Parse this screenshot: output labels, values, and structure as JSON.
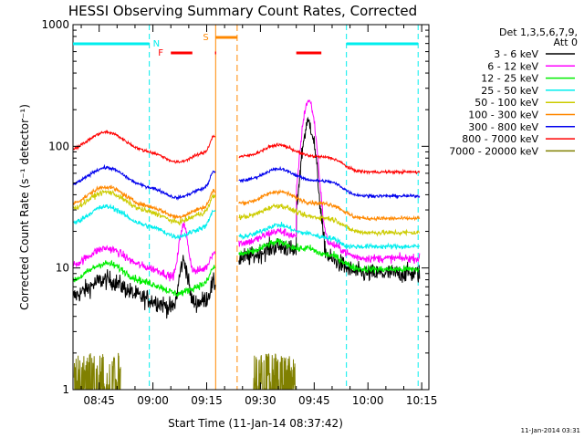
{
  "chart_data": {
    "type": "line",
    "title": "HESSI Observing Summary Count Rates, Corrected",
    "xlabel": "Start Time (11-Jan-14 08:37:42)",
    "ylabel": "Corrected Count Rate (s⁻¹ detector⁻¹)",
    "yscale": "log",
    "ylim": [
      1,
      1000
    ],
    "xlim": [
      "08:37:42",
      "10:17:00"
    ],
    "x_ticks": [
      "08:45",
      "09:00",
      "09:15",
      "09:30",
      "09:45",
      "10:00",
      "10:15"
    ],
    "y_ticks": [
      "1",
      "10",
      "100",
      "1000"
    ],
    "timestamp": "11-Jan-2014 03:31",
    "legend": {
      "header": [
        "Det 1,3,5,6,7,9,",
        "Att 0"
      ],
      "placement": "right"
    },
    "series": [
      {
        "name": "3 - 6 keV",
        "color": "#000000"
      },
      {
        "name": "6 - 12 keV",
        "color": "#ff00ff"
      },
      {
        "name": "12 - 25 keV",
        "color": "#00ee00"
      },
      {
        "name": "25 - 50 keV",
        "color": "#00eeee"
      },
      {
        "name": "50 - 100 keV",
        "color": "#cccc00"
      },
      {
        "name": "100 - 300 keV",
        "color": "#ff8800"
      },
      {
        "name": "300 - 800 keV",
        "color": "#0000ee"
      },
      {
        "name": "800 - 7000 keV",
        "color": "#ff0000"
      },
      {
        "name": "7000 - 20000 keV",
        "color": "#808000"
      }
    ],
    "annotations": {
      "night": {
        "label": "N",
        "color": "#00eeee",
        "bars": [
          [
            "08:37:42",
            "08:59:00"
          ],
          [
            "09:54:00",
            "10:14:00"
          ]
        ],
        "boundaries": [
          "08:59:00",
          "09:54:00",
          "10:14:00"
        ]
      },
      "flare": {
        "label": "F",
        "color": "#ff0000",
        "bars": [
          [
            "09:05:00",
            "09:11:00"
          ],
          [
            "09:17:20",
            "09:17:40"
          ],
          [
            "09:40:00",
            "09:47:00"
          ]
        ]
      },
      "saa": {
        "label": "S",
        "color": "#ff8800",
        "bars": [
          [
            "09:17:30",
            "09:23:30"
          ]
        ],
        "boundaries": [
          "09:17:30",
          "09:23:30"
        ]
      }
    }
  }
}
